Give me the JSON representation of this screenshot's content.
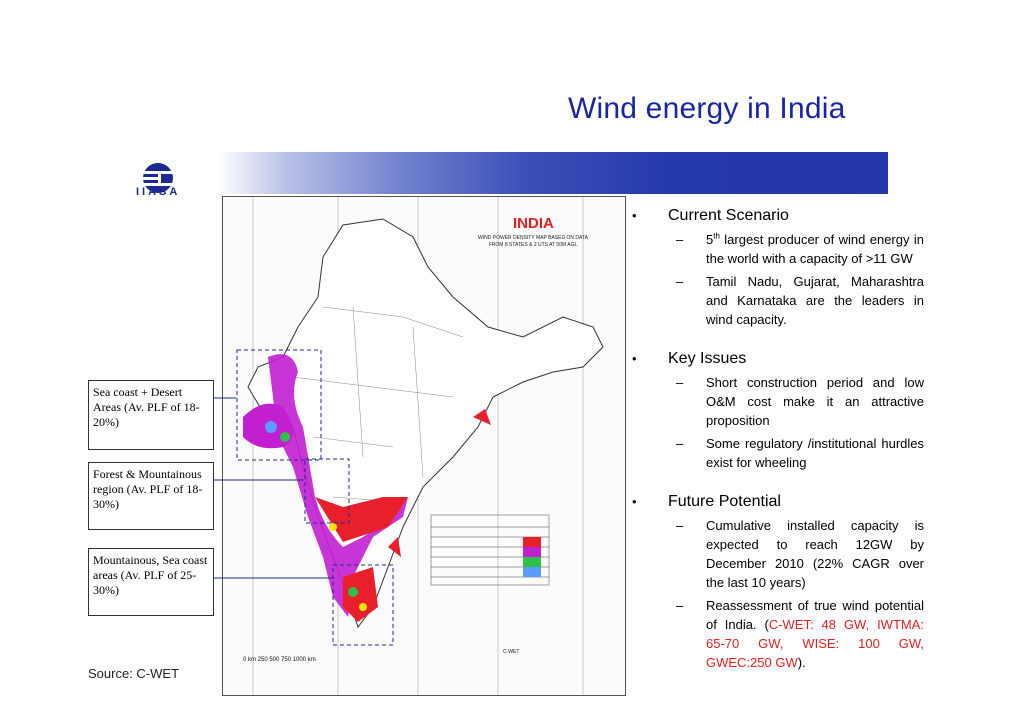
{
  "title": "Wind energy in India",
  "logo_text": "IIASA",
  "map": {
    "heading": "INDIA",
    "subtitle": "WIND POWER DENSITY MAP BASED ON DATA FROM 8 STATES & 2 UTS AT 50M AGL",
    "scale": "0 km    250    500    750    1000 km",
    "footer": "C-WET"
  },
  "notes": [
    {
      "text": "Sea coast + Desert Areas (Av. PLF of 18-20%)"
    },
    {
      "text": "Forest & Mountainous region (Av. PLF of 18-30%)"
    },
    {
      "text": "Mountainous, Sea coast areas (Av. PLF of 25-30%)"
    }
  ],
  "source": "Source: C-WET",
  "sections": [
    {
      "heading": "Current Scenario",
      "items": [
        {
          "pre": "5",
          "sup": "th",
          "post": " largest producer of wind energy in the world with a capacity of >11 GW"
        },
        {
          "pre": "Tamil Nadu, Gujarat, Maharashtra and Karnataka are the leaders in wind capacity.",
          "sup": "",
          "post": ""
        }
      ]
    },
    {
      "heading": "Key Issues",
      "items": [
        {
          "pre": "Short construction period and low O&M cost make it an attractive proposition",
          "sup": "",
          "post": ""
        },
        {
          "pre": "Some regulatory /institutional hurdles exist for wheeling",
          "sup": "",
          "post": ""
        }
      ]
    },
    {
      "heading": "Future Potential",
      "items": [
        {
          "pre": "Cumulative installed capacity is expected to reach 12GW by December 2010 (22% CAGR over the last 10 years)",
          "sup": "",
          "post": ""
        }
      ],
      "last": {
        "lead": "Reassessment of true wind potential of India. (",
        "red": "C-WET: 48 GW, IWTMA: 65-70 GW, WISE: 100 GW, GWEC:250 GW",
        "tail": ")."
      }
    }
  ],
  "colors": {
    "title": "#1a24a6",
    "accent": "#e51d1d",
    "wind_magenta": "#c21fd1",
    "wind_red": "#e8202b"
  }
}
